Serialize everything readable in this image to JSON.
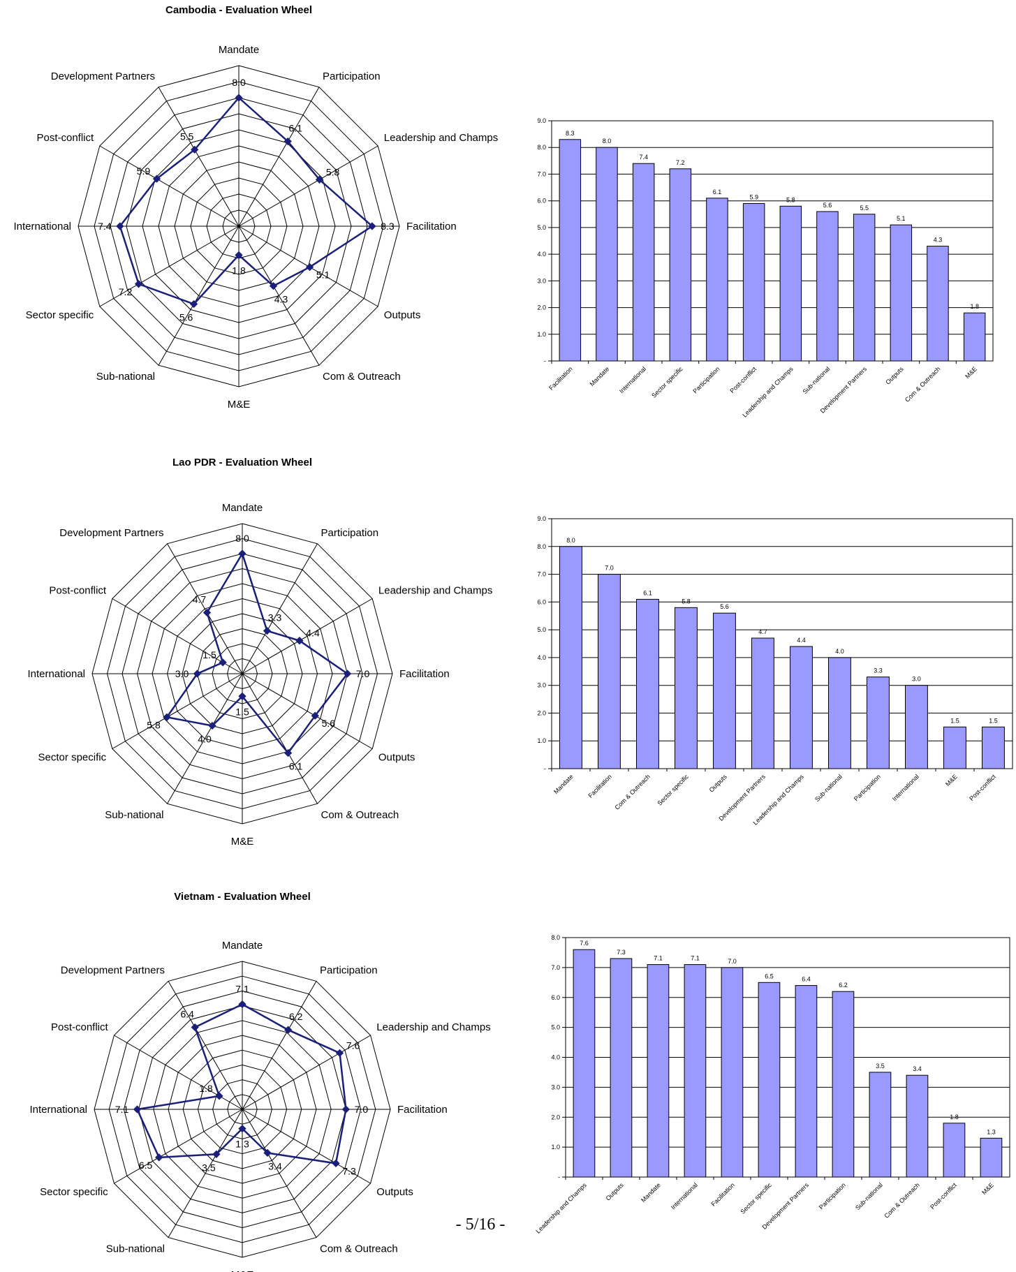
{
  "footer": "- 5/16 -",
  "colors": {
    "wheel_line": "#1a1f7a",
    "bar_fill": "#9999ff",
    "bar_stroke": "#000000",
    "grid": "#000000"
  },
  "chart_data": [
    {
      "type": "radar",
      "title": "Cambodia - Evaluation Wheel",
      "axes": [
        "Mandate",
        "Participation",
        "Leadership and Champs",
        "Facilitation",
        "Outputs",
        "Com & Outreach",
        "M&E",
        "Sub-national",
        "Sector specific",
        "International",
        "Post-conflict",
        "Development Partners"
      ],
      "values": [
        8.0,
        6.1,
        5.8,
        8.3,
        5.1,
        4.3,
        1.8,
        5.6,
        7.2,
        7.4,
        5.9,
        5.5
      ],
      "value_labels": [
        "8.0",
        "6.1",
        "5.8",
        "8.3",
        "5.1",
        "4.3",
        "1.8",
        "5.6",
        "7.2",
        "7.4",
        "5.9",
        "5.5"
      ],
      "rmax": 10,
      "rings": 10
    },
    {
      "type": "bar",
      "title": "",
      "categories": [
        "Facilitation",
        "Mandate",
        "International",
        "Sector specific",
        "Participation",
        "Post-conflict",
        "Leadership and Champs",
        "Sub-national",
        "Development Partners",
        "Outputs",
        "Com & Outreach",
        "M&E"
      ],
      "values": [
        8.3,
        8.0,
        7.4,
        7.2,
        6.1,
        5.9,
        5.8,
        5.6,
        5.5,
        5.1,
        4.3,
        1.8
      ],
      "value_labels": [
        "8.3",
        "8.0",
        "7.4",
        "7.2",
        "6.1",
        "5.9",
        "5.8",
        "5.6",
        "5.5",
        "5.1",
        "4.3",
        "1.8"
      ],
      "ylim": [
        0,
        9
      ],
      "yticks": [
        "-",
        "1.0",
        "2.0",
        "3.0",
        "4.0",
        "5.0",
        "6.0",
        "7.0",
        "8.0",
        "9.0"
      ]
    },
    {
      "type": "radar",
      "title": "Lao PDR - Evaluation Wheel",
      "axes": [
        "Mandate",
        "Participation",
        "Leadership and Champs",
        "Facilitation",
        "Outputs",
        "Com & Outreach",
        "M&E",
        "Sub-national",
        "Sector specific",
        "International",
        "Post-conflict",
        "Development Partners"
      ],
      "values": [
        8.0,
        3.3,
        4.4,
        7.0,
        5.6,
        6.1,
        1.5,
        4.0,
        5.8,
        3.0,
        1.5,
        4.7
      ],
      "value_labels": [
        "8.0",
        "3.3",
        "4.4",
        "7.0",
        "5.6",
        "6.1",
        "1.5",
        "4.0",
        "5.8",
        "3.0",
        "1.5",
        "4.7"
      ],
      "rmax": 10,
      "rings": 10
    },
    {
      "type": "bar",
      "title": "",
      "categories": [
        "Mandate",
        "Facilitation",
        "Com & Outreach",
        "Sector specific",
        "Outputs",
        "Development Partners",
        "Leadership and Champs",
        "Sub-national",
        "Participation",
        "International",
        "M&E",
        "Post-conflict"
      ],
      "values": [
        8.0,
        7.0,
        6.1,
        5.8,
        5.6,
        4.7,
        4.4,
        4.0,
        3.3,
        3.0,
        1.5,
        1.5
      ],
      "value_labels": [
        "8.0",
        "7.0",
        "6.1",
        "5.8",
        "5.6",
        "4.7",
        "4.4",
        "4.0",
        "3.3",
        "3.0",
        "1.5",
        "1.5"
      ],
      "ylim": [
        0,
        9
      ],
      "yticks": [
        "-",
        "1.0",
        "2.0",
        "3.0",
        "4.0",
        "5.0",
        "6.0",
        "7.0",
        "8.0",
        "9.0"
      ]
    },
    {
      "type": "radar",
      "title": "Vietnam - Evaluation Wheel",
      "axes": [
        "Mandate",
        "Participation",
        "Leadership and Champs",
        "Facilitation",
        "Outputs",
        "Com & Outreach",
        "M&E",
        "Sub-national",
        "Sector specific",
        "International",
        "Post-conflict",
        "Development Partners"
      ],
      "values": [
        7.1,
        6.2,
        7.6,
        7.0,
        7.3,
        3.4,
        1.3,
        3.5,
        6.5,
        7.1,
        1.8,
        6.4
      ],
      "value_labels": [
        "7.1",
        "6.2",
        "7.6",
        "7.0",
        "7.3",
        "3.4",
        "1.3",
        "3.5",
        "6.5",
        "7.1",
        "1.8",
        "6.4"
      ],
      "rmax": 10,
      "rings": 10
    },
    {
      "type": "bar",
      "title": "",
      "categories": [
        "Leadership and Champs",
        "Outputs",
        "Mandate",
        "International",
        "Facilitation",
        "Sector specific",
        "Development Partners",
        "Participation",
        "Sub-national",
        "Com & Outreach",
        "Post-conflict",
        "M&E"
      ],
      "values": [
        7.6,
        7.3,
        7.1,
        7.1,
        7.0,
        6.5,
        6.4,
        6.2,
        3.5,
        3.4,
        1.8,
        1.3
      ],
      "value_labels": [
        "7.6",
        "7.3",
        "7.1",
        "7.1",
        "7.0",
        "6.5",
        "6.4",
        "6.2",
        "3.5",
        "3.4",
        "1.8",
        "1.3"
      ],
      "ylim": [
        0,
        8
      ],
      "yticks": [
        "-",
        "1.0",
        "2.0",
        "3.0",
        "4.0",
        "5.0",
        "6.0",
        "7.0",
        "8.0"
      ]
    }
  ]
}
